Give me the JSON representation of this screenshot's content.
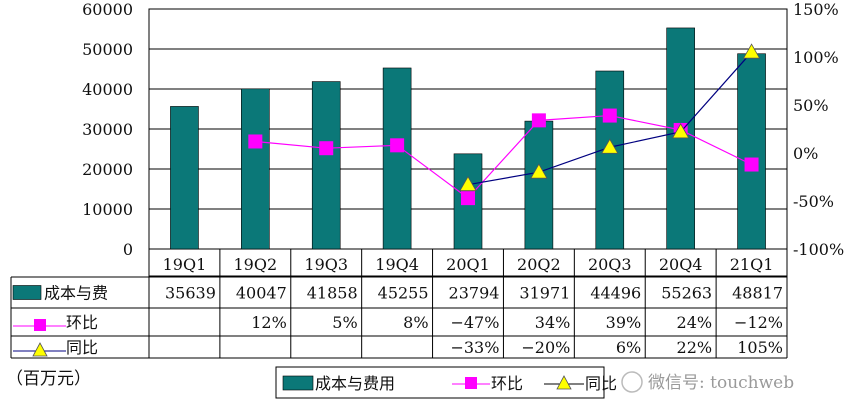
{
  "chart_data": {
    "type": "bar",
    "categories": [
      "19Q1",
      "19Q2",
      "19Q3",
      "19Q4",
      "20Q1",
      "20Q2",
      "20Q3",
      "20Q4",
      "21Q1"
    ],
    "series": [
      {
        "name": "成本与费用",
        "table_label": "成本与费",
        "type": "bar",
        "axis": "left",
        "color": "#0b7878",
        "values": [
          35639,
          40047,
          41858,
          45255,
          23794,
          31971,
          44496,
          55263,
          48817
        ],
        "labels": [
          "35639",
          "40047",
          "41858",
          "45255",
          "23794",
          "31971",
          "44496",
          "55263",
          "48817"
        ]
      },
      {
        "name": "环比",
        "table_label": "环比",
        "type": "line",
        "axis": "right",
        "color": "#ff00ff",
        "marker": "square",
        "values": [
          null,
          12,
          5,
          8,
          -47,
          34,
          39,
          24,
          -12
        ],
        "labels": [
          "",
          "12%",
          "5%",
          "8%",
          "−47%",
          "34%",
          "39%",
          "24%",
          "−12%"
        ]
      },
      {
        "name": "同比",
        "table_label": "同比",
        "type": "line",
        "axis": "right",
        "color": "#000080",
        "marker": "triangle",
        "marker_color": "#ffff00",
        "values": [
          null,
          null,
          null,
          null,
          -33,
          -20,
          6,
          22,
          105
        ],
        "labels": [
          "",
          "",
          "",
          "",
          "−33%",
          "−20%",
          "6%",
          "22%",
          "105%"
        ]
      }
    ],
    "y_left": {
      "min": 0,
      "max": 60000,
      "ticks": [
        "0",
        "10000",
        "20000",
        "30000",
        "40000",
        "50000",
        "60000"
      ]
    },
    "y_right": {
      "min": -100,
      "max": 150,
      "unit": "%",
      "ticks": [
        "-100%",
        "-50%",
        "0%",
        "50%",
        "100%",
        "150%"
      ]
    },
    "unit_note": "（百万元）",
    "legend_placement": "bottom",
    "grid": true,
    "watermark": "微信号: touchweb"
  }
}
